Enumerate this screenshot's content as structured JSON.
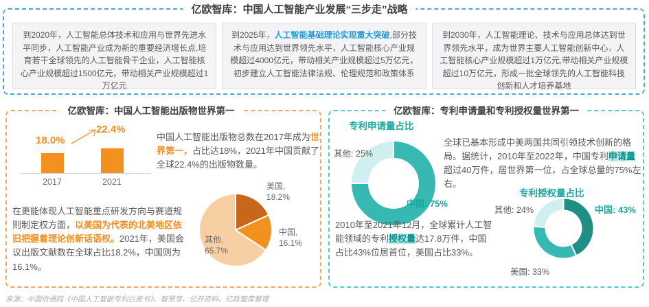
{
  "header": {
    "title": "亿欧智库：中国人工智能产业发展“三步走”战略"
  },
  "milestones": [
    {
      "rich": [
        {
          "t": "到2020年，人工智能总体技术和应用与世界先进水平同步，人工智能产业成为新的重要经济增长点,培育若干全球领先的人工智能骨干企业，人工智能核心产业规模超过1500亿元，带动相关产业规模超过1万亿元"
        }
      ]
    },
    {
      "rich": [
        {
          "t": "到2025年，"
        },
        {
          "t": "人工智能基础理论实现重大突破",
          "cls": "em-blue"
        },
        {
          "t": ",部分技术与应用达到世界领先水平，人工智能核心产业规模超过4000亿元，带动相关产业规模超过5万亿元，初步建立人工智能法律法规、伦理规范和政策体系"
        }
      ]
    },
    {
      "rich": [
        {
          "t": "到2030年，人工智能理论、技术与应用总体达到世界领先水平，成为世界主要人工智能创新中心，人工智能核心产业规模超过1万亿元,带动相关产业规模超过10万亿元，形成一批全球领先的人工智能科技创新和人才培养基地"
        }
      ]
    }
  ],
  "publications_section": {
    "title": "亿欧智库：中国人工智能出版物世界第一",
    "text1_rich": [
      {
        "t": "中国人工智能出版物总数在2017年成为"
      },
      {
        "t": "世界第一，",
        "cls": "em-orange"
      },
      {
        "t": "占比达18%，2021年中国贡献了全球22.4%的出版物数量。"
      }
    ],
    "text2_rich": [
      {
        "t": "在更能体现人工智能重点研发方向与赛道规则制定权方面，"
      },
      {
        "t": "以美国为代表的北美地区依旧把握着理论创新话语权。",
        "cls": "em-orange"
      },
      {
        "t": "2021年，美国会议出版文献数在全球占比18.2%，中国则为16.1%。"
      }
    ]
  },
  "patents_section": {
    "title": "亿欧智库：专利申请量和专利授权量世界第一",
    "text1_rich": [
      {
        "t": "全球已基本形成中美两国共同引领技术创新的格局。据统计，2010年至2022年，中国专利"
      },
      {
        "t": "申请量",
        "cls": "em-teal"
      },
      {
        "t": "超过40万件，居世界第一位，占全球总量的75%左右。"
      }
    ],
    "text2_rich": [
      {
        "t": "2010年至2021年12月，全球累计人工智能领域的专利"
      },
      {
        "t": "授权量",
        "cls": "em-teal"
      },
      {
        "t": "达17.8万件，中国占比43%位居首位，美国占比33%。"
      }
    ]
  },
  "footer": {
    "source": "来源：中国信通院《中国人工智能专利白皮书》、智慧芽、公开资料、亿欧智库整理"
  },
  "colors": {
    "accent_blue": "#49A8E0",
    "accent_orange": "#F28D1E",
    "accent_teal": "#18A7A1",
    "bar_orange": "#F2911E"
  },
  "chart_data": [
    {
      "type": "bar",
      "title": "中国人工智能出版物全球占比",
      "categories": [
        "2017",
        "2021"
      ],
      "values": [
        18.0,
        22.4
      ],
      "value_labels": [
        "18.0%",
        "22.4%"
      ],
      "ylim": [
        0,
        25
      ],
      "bar_color": "#F2911E"
    },
    {
      "type": "pie",
      "title": "2021年会议出版文献数全球占比",
      "slices": [
        {
          "name": "美国",
          "value": 18.2,
          "label_line1": "美国,",
          "label_line2": "18.2%",
          "color": "#C8661A"
        },
        {
          "name": "中国",
          "value": 16.1,
          "label_line1": "中国,",
          "label_line2": "16.1%",
          "color": "#F2911E"
        },
        {
          "name": "其他",
          "value": 65.7,
          "label_line1": "其他,",
          "label_line2": "65.7%",
          "color": "#F8CFA3"
        }
      ]
    },
    {
      "type": "donut",
      "title": "专利申请量占比",
      "slices": [
        {
          "name": "中国",
          "value": 75,
          "label": "中国: 75%",
          "color": "#38B8B3"
        },
        {
          "name": "其他",
          "value": 25,
          "label": "其他: 25%",
          "color": "#CFEFF1"
        }
      ]
    },
    {
      "type": "donut",
      "title": "专利授权量占比",
      "slices": [
        {
          "name": "中国",
          "value": 43,
          "label": "中国: 43%",
          "color": "#1F8E83"
        },
        {
          "name": "美国",
          "value": 33,
          "label": "美国: 33%",
          "color": "#38B8B3"
        },
        {
          "name": "其他",
          "value": 24,
          "label": "其他: 24%",
          "color": "#CFEFF1"
        }
      ]
    }
  ]
}
